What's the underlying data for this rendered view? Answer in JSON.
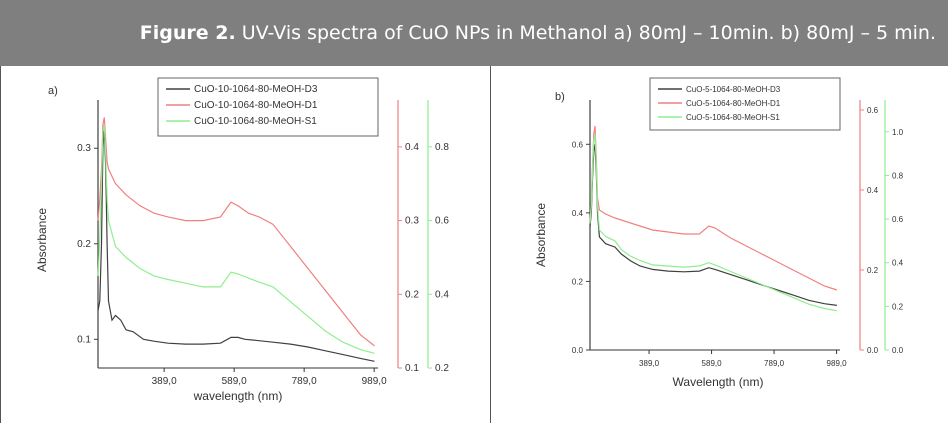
{
  "caption": {
    "label": "Figure 2.",
    "text": " UV-Vis spectra of CuO NPs in Methanol a) 80mJ – 10min.  b) 80mJ – 5 min."
  },
  "colors": {
    "caption_bg": "#7f7f7f",
    "black": "#404040",
    "red": "#f08080",
    "green": "#90ee90"
  },
  "chart_data": [
    {
      "panel": "a)",
      "type": "line",
      "xlabel": "wavelength (nm)",
      "ylabel": "Absorbance",
      "xticks": [
        "389,0",
        "589,0",
        "789,0",
        "989,0"
      ],
      "xlim": [
        200,
        1000
      ],
      "axes": [
        {
          "side": "left",
          "color": "#404040",
          "ylim": [
            0.07,
            0.34
          ],
          "ticks": [
            0.1,
            0.2,
            0.3
          ],
          "tick_labels": [
            "0.1",
            "0.2",
            "0.3"
          ]
        },
        {
          "side": "right1",
          "color": "#f08080",
          "ylim": [
            0.1,
            0.45
          ],
          "ticks": [
            0.1,
            0.2,
            0.3,
            0.4
          ],
          "tick_labels": [
            "0.1",
            "0.2",
            "0.3",
            "0.4"
          ]
        },
        {
          "side": "right2",
          "color": "#90ee90",
          "ylim": [
            0.2,
            0.9
          ],
          "ticks": [
            0.2,
            0.4,
            0.6,
            0.8
          ],
          "tick_labels": [
            "0.2",
            "0.4",
            "0.6",
            "0.8"
          ]
        }
      ],
      "legend": [
        "CuO-10-1064-80-MeOH-D3",
        "CuO-10-1064-80-MeOH-D1",
        "CuO-10-1064-80-MeOH-S1"
      ],
      "series": [
        {
          "name": "CuO-10-1064-80-MeOH-D3",
          "axis": 0,
          "color": "#404040",
          "x": [
            200,
            205,
            210,
            214,
            218,
            222,
            226,
            230,
            240,
            250,
            265,
            280,
            300,
            330,
            360,
            400,
            450,
            500,
            550,
            580,
            600,
            620,
            650,
            700,
            750,
            800,
            850,
            900,
            950,
            990
          ],
          "y": [
            0.13,
            0.14,
            0.2,
            0.3,
            0.32,
            0.28,
            0.2,
            0.14,
            0.12,
            0.125,
            0.12,
            0.11,
            0.108,
            0.1,
            0.098,
            0.096,
            0.095,
            0.095,
            0.096,
            0.102,
            0.102,
            0.1,
            0.099,
            0.097,
            0.095,
            0.092,
            0.088,
            0.084,
            0.08,
            0.077
          ]
        },
        {
          "name": "CuO-10-1064-80-MeOH-D1",
          "axis": 1,
          "color": "#f08080",
          "x": [
            200,
            205,
            210,
            214,
            218,
            222,
            226,
            230,
            250,
            280,
            320,
            360,
            400,
            450,
            500,
            550,
            580,
            600,
            630,
            660,
            700,
            750,
            800,
            850,
            900,
            950,
            990
          ],
          "y": [
            0.3,
            0.33,
            0.37,
            0.43,
            0.44,
            0.41,
            0.38,
            0.37,
            0.35,
            0.335,
            0.32,
            0.31,
            0.305,
            0.3,
            0.3,
            0.305,
            0.325,
            0.32,
            0.31,
            0.305,
            0.295,
            0.265,
            0.235,
            0.205,
            0.175,
            0.145,
            0.13
          ]
        },
        {
          "name": "CuO-10-1064-80-MeOH-S1",
          "axis": 2,
          "color": "#90ee90",
          "x": [
            200,
            205,
            210,
            214,
            218,
            222,
            226,
            230,
            250,
            280,
            320,
            360,
            400,
            450,
            500,
            550,
            580,
            600,
            640,
            700,
            750,
            800,
            850,
            900,
            950,
            990
          ],
          "y": [
            0.45,
            0.55,
            0.7,
            0.84,
            0.86,
            0.78,
            0.66,
            0.6,
            0.53,
            0.5,
            0.47,
            0.45,
            0.44,
            0.43,
            0.42,
            0.42,
            0.46,
            0.455,
            0.44,
            0.42,
            0.38,
            0.34,
            0.3,
            0.27,
            0.25,
            0.24
          ]
        }
      ]
    },
    {
      "panel": "b)",
      "type": "line",
      "xlabel": "Wavelength (nm)",
      "ylabel": "Absorbance",
      "xticks": [
        "389,0",
        "589,0",
        "789,0",
        "989,0"
      ],
      "xlim": [
        200,
        1000
      ],
      "axes": [
        {
          "side": "left",
          "color": "#404040",
          "ylim": [
            0.0,
            0.7
          ],
          "ticks": [
            0.0,
            0.2,
            0.4,
            0.6
          ],
          "tick_labels": [
            "0.0",
            "0.2",
            "0.4",
            "0.6"
          ]
        },
        {
          "side": "right1",
          "color": "#f08080",
          "ylim": [
            0.0,
            0.6
          ],
          "ticks": [
            0.0,
            0.2,
            0.4,
            0.6
          ],
          "tick_labels": [
            "0.0",
            "0.2",
            "0.4",
            "0.6"
          ]
        },
        {
          "side": "right2",
          "color": "#90ee90",
          "ylim": [
            0.0,
            1.1
          ],
          "ticks": [
            0.0,
            0.2,
            0.4,
            0.6,
            0.8,
            1.0
          ],
          "tick_labels": [
            "0.0",
            "0.2",
            "0.4",
            "0.6",
            "0.8",
            "1.0"
          ]
        }
      ],
      "legend": [
        "CuO-5-1064-80-MeOH-D3",
        "CuO-5-1064-80-MeOH-D1",
        "CuO-5-1064-80-MeOH-S1"
      ],
      "series": [
        {
          "name": "CuO-5-1064-80-MeOH-D3",
          "axis": 0,
          "color": "#404040",
          "x": [
            200,
            204,
            208,
            212,
            216,
            220,
            224,
            230,
            250,
            280,
            300,
            330,
            360,
            400,
            450,
            500,
            550,
            580,
            600,
            650,
            700,
            750,
            800,
            850,
            900,
            950,
            990
          ],
          "y": [
            0.36,
            0.4,
            0.5,
            0.58,
            0.6,
            0.52,
            0.4,
            0.33,
            0.31,
            0.3,
            0.28,
            0.26,
            0.245,
            0.235,
            0.23,
            0.228,
            0.23,
            0.24,
            0.235,
            0.22,
            0.205,
            0.19,
            0.175,
            0.16,
            0.145,
            0.135,
            0.13
          ]
        },
        {
          "name": "CuO-5-1064-80-MeOH-D1",
          "axis": 1,
          "color": "#f08080",
          "x": [
            200,
            204,
            208,
            212,
            216,
            220,
            224,
            230,
            250,
            280,
            320,
            360,
            400,
            450,
            500,
            550,
            580,
            600,
            650,
            700,
            750,
            800,
            850,
            900,
            950,
            990
          ],
          "y": [
            0.32,
            0.37,
            0.46,
            0.54,
            0.56,
            0.48,
            0.38,
            0.35,
            0.34,
            0.33,
            0.32,
            0.31,
            0.3,
            0.295,
            0.29,
            0.29,
            0.31,
            0.305,
            0.28,
            0.26,
            0.24,
            0.22,
            0.2,
            0.18,
            0.16,
            0.15
          ]
        },
        {
          "name": "CuO-5-1064-80-MeOH-S1",
          "axis": 2,
          "color": "#90ee90",
          "x": [
            200,
            204,
            208,
            212,
            216,
            220,
            224,
            230,
            250,
            280,
            300,
            330,
            360,
            400,
            450,
            500,
            550,
            580,
            600,
            650,
            700,
            750,
            800,
            850,
            900,
            950,
            990
          ],
          "y": [
            0.58,
            0.66,
            0.82,
            0.96,
            0.99,
            0.86,
            0.66,
            0.55,
            0.52,
            0.5,
            0.46,
            0.43,
            0.41,
            0.39,
            0.385,
            0.38,
            0.385,
            0.4,
            0.39,
            0.36,
            0.33,
            0.3,
            0.27,
            0.24,
            0.21,
            0.19,
            0.18
          ]
        }
      ]
    }
  ]
}
